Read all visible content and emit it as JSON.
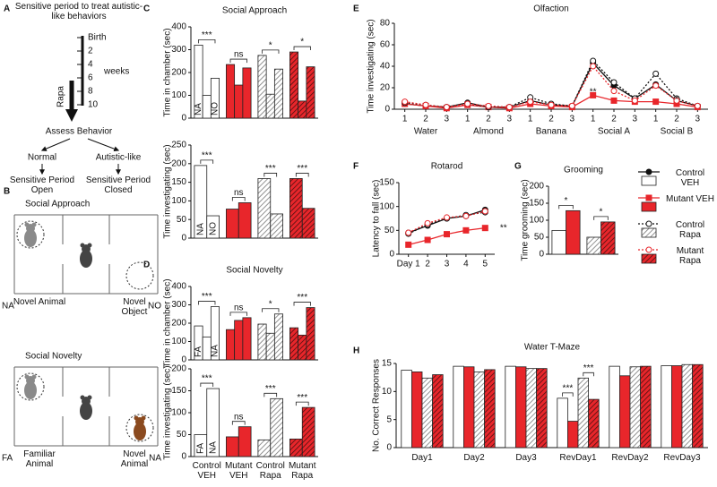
{
  "panel_labels": [
    "A",
    "B",
    "C",
    "D",
    "E",
    "F",
    "G",
    "H"
  ],
  "diagram_a": {
    "title": "Sensitive period to treat autistic-like behaviors",
    "timeline": [
      "Birth",
      "2",
      "4",
      "6",
      "8",
      "10"
    ],
    "unit": "weeks",
    "treatment": "Rapa",
    "assess": "Assess Behavior",
    "outcomes": [
      {
        "label": "Normal",
        "result": "Sensitive Period Open"
      },
      {
        "label": "Autistic-like",
        "result": "Sensitive Period Closed"
      }
    ]
  },
  "diagram_b": {
    "tests": [
      {
        "title": "Social Approach",
        "left_code": "NA",
        "left": "Novel Animal",
        "right": "Novel Object",
        "right_code": "NO"
      },
      {
        "title": "Social Novelty",
        "left_code": "FA",
        "left": "Familiar Animal",
        "right": "Novel Animal",
        "right_code": "NA"
      }
    ]
  },
  "styles": [
    {
      "fill": "#ffffff"
    },
    {
      "fill": "#e8262b"
    },
    {
      "fill": "#ffffff",
      "hatch": "#777777"
    },
    {
      "fill": "#e8262b",
      "hatch": "#4a1010"
    }
  ],
  "chart_data": [
    {
      "type": "bar",
      "title": "Social Approach",
      "ylabel": "Time in chamber (sec)",
      "ylim": [
        0,
        400
      ],
      "yticks": [
        0,
        100,
        200,
        300,
        400
      ],
      "bar_labels": [
        "NA",
        null,
        "NO"
      ],
      "groups": [
        [
          320,
          100,
          175
        ],
        [
          235,
          145,
          220
        ],
        [
          275,
          105,
          215
        ],
        [
          290,
          75,
          225
        ]
      ],
      "significance": [
        "***",
        "ns",
        "*",
        "*"
      ]
    },
    {
      "type": "bar",
      "ylabel": "Time investigating (sec)",
      "ylim": [
        0,
        250
      ],
      "yticks": [
        0,
        50,
        100,
        150,
        200,
        250
      ],
      "bar_labels": [
        "NA",
        "NO"
      ],
      "groups": [
        [
          195,
          60
        ],
        [
          78,
          95
        ],
        [
          160,
          65
        ],
        [
          160,
          80
        ]
      ],
      "significance": [
        "***",
        "ns",
        "***",
        "***"
      ]
    },
    {
      "type": "bar",
      "title": "Social Novelty",
      "ylabel": "Time in chamber (sec)",
      "ylim": [
        0,
        400
      ],
      "yticks": [
        0,
        100,
        200,
        300,
        400
      ],
      "bar_labels": [
        "FA",
        null,
        "NA"
      ],
      "groups": [
        [
          185,
          125,
          290
        ],
        [
          165,
          215,
          230
        ],
        [
          195,
          145,
          250
        ],
        [
          175,
          135,
          285
        ]
      ],
      "significance": [
        "***",
        "ns",
        "*",
        "***"
      ]
    },
    {
      "type": "bar",
      "ylabel": "Time investigating (sec)",
      "ylim": [
        0,
        200
      ],
      "yticks": [
        0,
        50,
        100,
        150,
        200
      ],
      "bar_labels": [
        "FA",
        "NA"
      ],
      "groups": [
        [
          50,
          155
        ],
        [
          45,
          68
        ],
        [
          38,
          132
        ],
        [
          40,
          112
        ]
      ],
      "significance": [
        "***",
        "ns",
        "***",
        "***"
      ],
      "categories": [
        "Control VEH",
        "Mutant VEH",
        "Control Rapa",
        "Mutant Rapa"
      ]
    },
    {
      "type": "line",
      "title": "Olfaction",
      "ylabel": "Time investigating (sec)",
      "ylim": [
        0,
        80
      ],
      "yticks": [
        0,
        20,
        40,
        60,
        80
      ],
      "categories": [
        "1",
        "2",
        "3",
        "1",
        "2",
        "3",
        "1",
        "2",
        "3",
        "1",
        "2",
        "3",
        "1",
        "2",
        "3"
      ],
      "category_groups": [
        "Water",
        "Almond",
        "Banana",
        "Social A",
        "Social B"
      ],
      "series": [
        {
          "color": "#111111",
          "marker": "circle",
          "dashed": false,
          "open": false,
          "values": [
            5,
            3,
            2,
            6,
            2,
            2,
            8,
            4,
            3,
            43,
            22,
            10,
            23,
            8,
            3
          ]
        },
        {
          "color": "#e8262b",
          "marker": "square",
          "dashed": false,
          "open": false,
          "values": [
            5,
            3,
            1,
            4,
            2,
            1,
            5,
            3,
            2,
            13,
            8,
            7,
            7,
            5,
            2
          ]
        },
        {
          "color": "#111111",
          "marker": "circle",
          "dashed": true,
          "open": true,
          "values": [
            6,
            4,
            2,
            5,
            2,
            2,
            11,
            5,
            3,
            45,
            25,
            10,
            33,
            10,
            3
          ]
        },
        {
          "color": "#e8262b",
          "marker": "circle",
          "dashed": true,
          "open": true,
          "values": [
            7,
            4,
            2,
            5,
            3,
            2,
            7,
            4,
            3,
            40,
            17,
            8,
            22,
            8,
            3
          ]
        }
      ],
      "annotations": [
        "**",
        "*"
      ]
    },
    {
      "type": "line",
      "title": "Rotarod",
      "ylabel": "Latency to fall (sec)",
      "ylim": [
        0,
        150
      ],
      "yticks": [
        0,
        50,
        100,
        150
      ],
      "categories": [
        "Day 1",
        "2",
        "3",
        "4",
        "5"
      ],
      "series": [
        {
          "name": "Control VEH",
          "color": "#111111",
          "marker": "circle",
          "dashed": false,
          "open": false,
          "values": [
            45,
            60,
            75,
            80,
            93
          ]
        },
        {
          "name": "Mutant VEH",
          "color": "#e8262b",
          "marker": "square",
          "dashed": false,
          "open": false,
          "values": [
            20,
            30,
            42,
            50,
            55
          ]
        },
        {
          "name": "Control Rapa",
          "color": "#111111",
          "marker": "circle",
          "dashed": true,
          "open": true,
          "values": [
            43,
            62,
            75,
            82,
            88
          ]
        },
        {
          "name": "Mutant Rapa",
          "color": "#e8262b",
          "marker": "circle",
          "dashed": true,
          "open": true,
          "values": [
            45,
            65,
            77,
            80,
            90
          ]
        }
      ],
      "annotations": [
        "**"
      ]
    },
    {
      "type": "bar",
      "title": "Grooming",
      "ylabel": "Time grooming (sec)",
      "ylim": [
        0,
        200
      ],
      "yticks": [
        0,
        50,
        100,
        150,
        200
      ],
      "values": [
        70,
        128,
        50,
        95
      ],
      "annotations": [
        "*",
        "*"
      ]
    },
    {
      "type": "bar",
      "title": "Water T-Maze",
      "ylabel": "No. Correct Responses",
      "ylim": [
        0,
        15
      ],
      "yticks": [
        0,
        5,
        10,
        15
      ],
      "categories": [
        "Day1",
        "Day2",
        "Day3",
        "RevDay1",
        "RevDay2",
        "RevDay3"
      ],
      "series": [
        {
          "values": [
            13.8,
            14.5,
            14.5,
            8.8,
            14.5,
            14.6
          ]
        },
        {
          "values": [
            13.5,
            14.4,
            14.4,
            4.7,
            12.8,
            14.6
          ]
        },
        {
          "values": [
            12.4,
            13.5,
            14.1,
            12.4,
            14.4,
            14.8
          ]
        },
        {
          "values": [
            13.0,
            13.9,
            14.1,
            8.6,
            14.5,
            14.8
          ]
        }
      ],
      "annotations": [
        "***",
        "***"
      ]
    }
  ]
}
